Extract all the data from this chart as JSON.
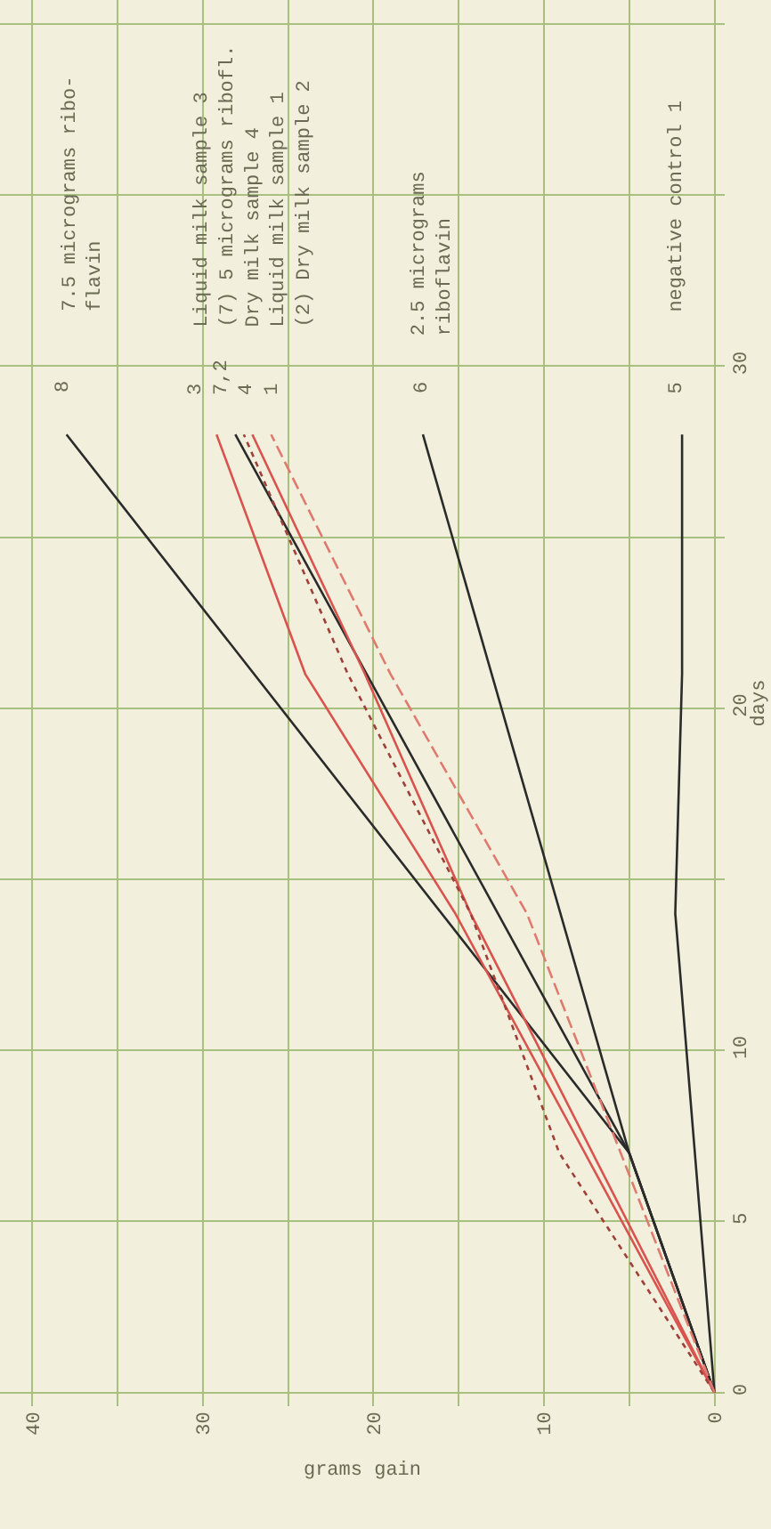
{
  "chart_data": {
    "type": "line",
    "xlabel": "grams gain",
    "ylabel": "days",
    "xlim": [
      41.9,
      -0.6
    ],
    "ylim": [
      -0.4,
      40.7
    ],
    "xticks": [
      0,
      {
        "value": 5,
        "label": null
      },
      10,
      {
        "value": 15,
        "label": null
      },
      20,
      {
        "value": 25,
        "label": null
      },
      30,
      {
        "value": 35,
        "label": null
      },
      40
    ],
    "yticks": [
      0,
      5,
      10,
      {
        "value": 15,
        "label": null
      },
      20,
      {
        "value": 25,
        "label": null
      },
      30,
      {
        "value": 35,
        "label": null
      },
      {
        "value": 40,
        "label": null
      }
    ],
    "grid": true,
    "marker": "none",
    "series": [
      {
        "color": "#2b2b2b",
        "x": [
          0,
          5.0,
          38.0
        ],
        "values": [
          0,
          7,
          28
        ]
      },
      {
        "color": "#2b2b2b",
        "x": [
          0,
          5.0,
          28.1
        ],
        "values": [
          0,
          7,
          28
        ]
      },
      {
        "color": "#2b2b2b",
        "x": [
          0,
          5.0,
          17.1
        ],
        "values": [
          0,
          7,
          28
        ]
      },
      {
        "color": "#2b2b2b",
        "x": [
          0,
          2.3,
          1.9,
          1.9
        ],
        "values": [
          0,
          14,
          21,
          28
        ]
      },
      {
        "color": "#d9534f",
        "x": [
          0,
          15.2,
          24.0,
          29.2
        ],
        "values": [
          0,
          14,
          21,
          28
        ]
      },
      {
        "color": "#d9534f",
        "x": [
          0,
          14.3,
          20.5,
          27.1
        ],
        "values": [
          0,
          14,
          21,
          28
        ]
      },
      {
        "color": "#a0403a",
        "line_style": "dotted",
        "x": [
          0,
          9.1,
          14.3,
          21.5,
          27.6
        ],
        "values": [
          0,
          7,
          14,
          21,
          28
        ]
      },
      {
        "color": "#e07a70",
        "line_style": "dashed",
        "x": [
          0,
          11.0,
          19.0,
          26.0
        ],
        "values": [
          0,
          14,
          21,
          28
        ]
      }
    ],
    "annotations": [
      "8",
      "7.5 micrograms ribo-\nflavin",
      "3\n7,2\n4\n1",
      "Liquid milk sample 3\n(7) 5 micrograms ribofl.\nDry milk sample 4\nLiquid milk sample 1\n(2) Dry milk sample 2",
      "6",
      "2.5 micrograms\nriboflavin",
      "5",
      "negative control 1"
    ]
  }
}
